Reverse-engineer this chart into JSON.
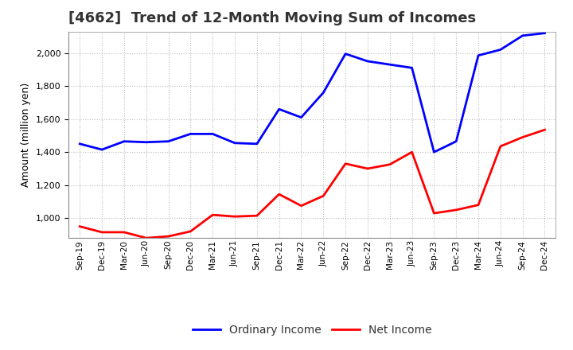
{
  "title": "[4662]  Trend of 12-Month Moving Sum of Incomes",
  "ylabel": "Amount (million yen)",
  "x_labels": [
    "Sep-19",
    "Dec-19",
    "Mar-20",
    "Jun-20",
    "Sep-20",
    "Dec-20",
    "Mar-21",
    "Jun-21",
    "Sep-21",
    "Dec-21",
    "Mar-22",
    "Jun-22",
    "Sep-22",
    "Dec-22",
    "Mar-23",
    "Jun-23",
    "Sep-23",
    "Dec-23",
    "Mar-24",
    "Jun-24",
    "Sep-24",
    "Dec-24"
  ],
  "ordinary_income": [
    1450,
    1415,
    1465,
    1460,
    1465,
    1510,
    1510,
    1455,
    1450,
    1660,
    1610,
    1760,
    1995,
    1950,
    1930,
    1910,
    1400,
    1465,
    1985,
    2020,
    2105,
    2120
  ],
  "net_income": [
    950,
    915,
    915,
    880,
    890,
    920,
    1020,
    1010,
    1015,
    1145,
    1075,
    1135,
    1330,
    1300,
    1325,
    1400,
    1030,
    1050,
    1080,
    1435,
    1490,
    1535
  ],
  "ordinary_income_color": "#0000FF",
  "net_income_color": "#FF0000",
  "background_color": "#FFFFFF",
  "grid_color": "#AAAAAA",
  "ylim": [
    880,
    2130
  ],
  "yticks": [
    1000,
    1200,
    1400,
    1600,
    1800,
    2000
  ],
  "title_fontsize": 13,
  "title_color": "#333333",
  "legend_labels": [
    "Ordinary Income",
    "Net Income"
  ]
}
